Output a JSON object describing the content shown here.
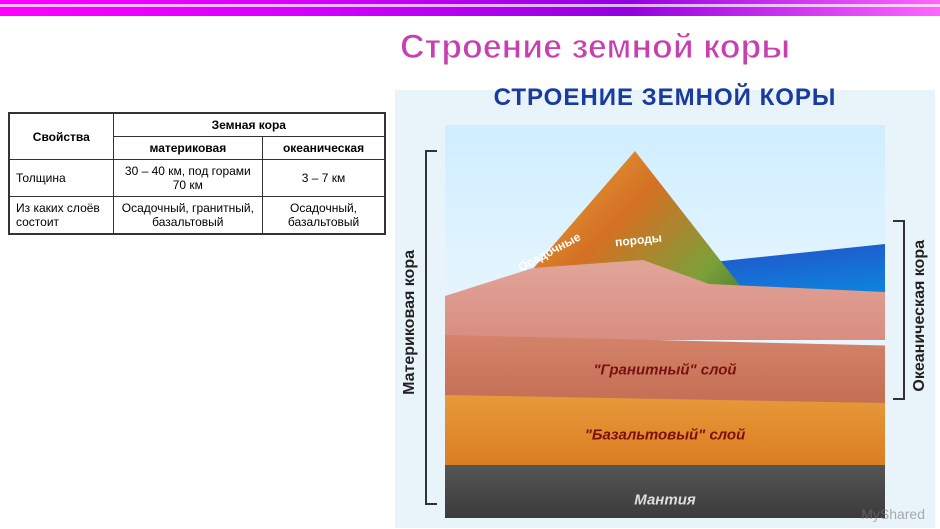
{
  "title": "Строение земной коры",
  "table": {
    "header_prop": "Свойства",
    "header_crust": "Земная кора",
    "col_cont": "материковая",
    "col_ocean": "океаническая",
    "row1_h": "Толщина",
    "row1_c": "30 – 40 км, под горами 70 км",
    "row1_o": "3 – 7 км",
    "row2_h": "Из каких слоёв состоит",
    "row2_c": "Осадочный, гранитный, базальтовый",
    "row2_o": "Осадочный, базальтовый"
  },
  "diagram": {
    "title": "СТРОЕНИЕ ЗЕМНОЙ КОРЫ",
    "left_label": "Материковая кора",
    "right_label": "Океаническая кора",
    "sediment_label": "Осадочные",
    "rock_label": "породы",
    "granite": "\"Гранитный\" слой",
    "basalt": "\"Базальтовый\" слой",
    "mantle": "Мантия",
    "watermark": "MyShared",
    "colors": {
      "title": "#1a3a9c",
      "sediment": "#d88d80",
      "granite": "#c46e54",
      "basalt": "#d87a1f",
      "mantle": "#333333",
      "ocean": "#0a8de0",
      "sky": "#cfeeff",
      "label_red": "#7a1010"
    },
    "type": "cross-section-diagram"
  },
  "styling": {
    "main_title_color": "#c93fb0",
    "main_title_fontsize": 34,
    "stripe_gradient": [
      "#ff00ff",
      "#d400ff",
      "#9300e0",
      "#ff66ff"
    ],
    "table_fontsize": 12,
    "diagram_title_fontsize": 24,
    "vlabel_fontsize": 16
  }
}
